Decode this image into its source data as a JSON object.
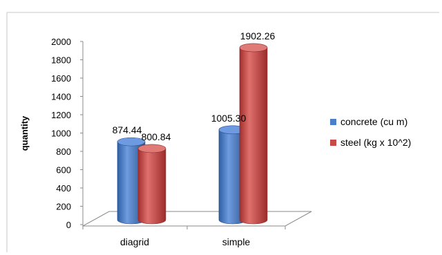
{
  "chart_data": {
    "type": "bar",
    "style": "3d-cylinder",
    "categories": [
      "diagrid",
      "simple"
    ],
    "series": [
      {
        "name": "concrete (cu m)",
        "values": [
          874.44,
          1005.3
        ],
        "labels": [
          "874.44",
          "1005.30"
        ],
        "color": "#4a7fc9"
      },
      {
        "name": "steel (kg x 10^2)",
        "values": [
          800.84,
          1902.26
        ],
        "labels": [
          "800.84",
          "1902.26"
        ],
        "color": "#c84a48"
      }
    ],
    "title": "",
    "xlabel": "",
    "ylabel": "quantity",
    "ylim": [
      0,
      2000
    ],
    "yticks": [
      "0",
      "200",
      "400",
      "600",
      "800",
      "1000",
      "1200",
      "1400",
      "1600",
      "1800",
      "2000"
    ],
    "grid": false,
    "legend": "right"
  }
}
